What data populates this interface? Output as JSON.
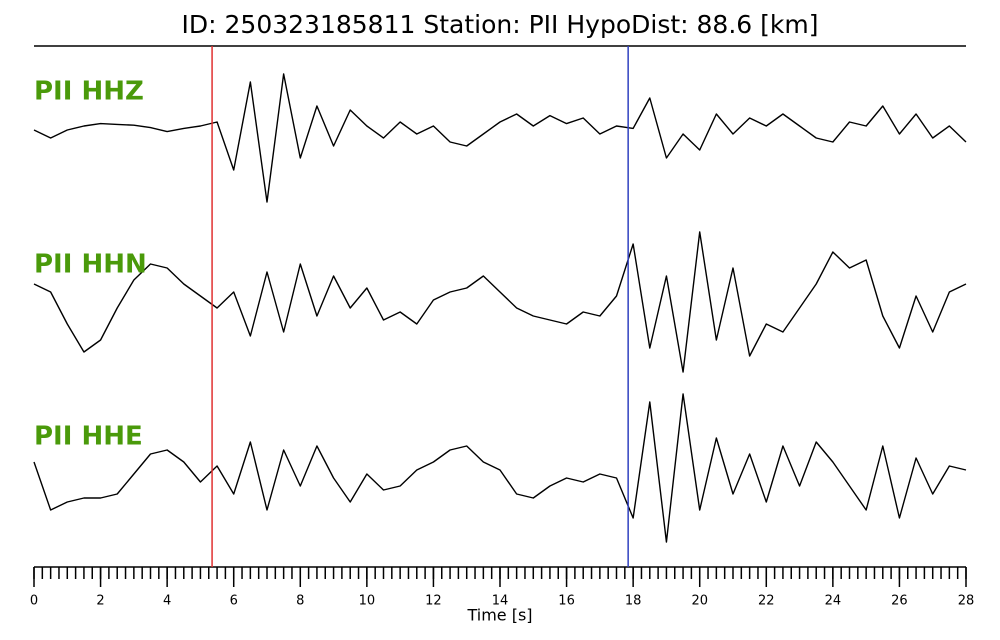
{
  "chart_data": {
    "type": "seismogram",
    "title": "ID: 250323185811   Station: PII   HypoDist:    88.6 [km]",
    "xlabel": "Time [s]",
    "xlim": [
      0,
      28
    ],
    "xticks": [
      0,
      2,
      4,
      6,
      8,
      10,
      12,
      14,
      16,
      18,
      20,
      22,
      24,
      26,
      28
    ],
    "xminor_step": 0.25,
    "ylim": [
      -1,
      1
    ],
    "label_color": "#4a9a0a",
    "x": [
      0,
      0.5,
      1,
      1.5,
      2,
      2.5,
      3,
      3.5,
      4,
      4.5,
      5,
      5.5,
      6,
      6.5,
      7,
      7.5,
      8,
      8.5,
      9,
      9.5,
      10,
      10.5,
      11,
      11.5,
      12,
      12.5,
      13,
      13.5,
      14,
      14.5,
      15,
      15.5,
      16,
      16.5,
      17,
      17.5,
      18,
      18.5,
      19,
      19.5,
      20,
      20.5,
      21,
      21.5,
      22,
      22.5,
      23,
      23.5,
      24,
      24.5,
      25,
      25.5,
      26,
      26.5,
      27,
      27.5,
      28
    ],
    "series": [
      {
        "name": "PII HHZ",
        "color": "#000000",
        "values": [
          0,
          -0.1,
          0,
          0.05,
          0.08,
          0.07,
          0.06,
          0.03,
          -0.02,
          0.02,
          0.05,
          0.1,
          -0.5,
          0.6,
          -0.9,
          0.7,
          -0.35,
          0.3,
          -0.2,
          0.25,
          0.05,
          -0.1,
          0.1,
          -0.05,
          0.05,
          -0.15,
          -0.2,
          -0.05,
          0.1,
          0.2,
          0.05,
          0.18,
          0.08,
          0.15,
          -0.05,
          0.05,
          0.02,
          0.4,
          -0.35,
          -0.05,
          -0.25,
          0.2,
          -0.05,
          0.15,
          0.05,
          0.2,
          0.05,
          -0.1,
          -0.15,
          0.1,
          0.05,
          0.3,
          -0.05,
          0.2,
          -0.1,
          0.05,
          -0.15
        ]
      },
      {
        "name": "PII HHN",
        "color": "#000000",
        "values": [
          0.2,
          0.1,
          -0.3,
          -0.65,
          -0.5,
          -0.1,
          0.25,
          0.45,
          0.4,
          0.2,
          0.05,
          -0.1,
          0.1,
          -0.45,
          0.35,
          -0.4,
          0.45,
          -0.2,
          0.3,
          -0.1,
          0.15,
          -0.25,
          -0.15,
          -0.3,
          0,
          0.1,
          0.15,
          0.3,
          0.1,
          -0.1,
          -0.2,
          -0.25,
          -0.3,
          -0.15,
          -0.2,
          0.05,
          0.7,
          -0.6,
          0.3,
          -0.9,
          0.85,
          -0.5,
          0.4,
          -0.7,
          -0.3,
          -0.4,
          -0.1,
          0.2,
          0.6,
          0.4,
          0.5,
          -0.2,
          -0.6,
          0.05,
          -0.4,
          0.1,
          0.2
        ]
      },
      {
        "name": "PII HHE",
        "color": "#000000",
        "values": [
          0.1,
          -0.5,
          -0.4,
          -0.35,
          -0.35,
          -0.3,
          -0.05,
          0.2,
          0.25,
          0.1,
          -0.15,
          0.05,
          -0.3,
          0.35,
          -0.5,
          0.25,
          -0.2,
          0.3,
          -0.1,
          -0.4,
          -0.05,
          -0.25,
          -0.2,
          0,
          0.1,
          0.25,
          0.3,
          0.1,
          0,
          -0.3,
          -0.35,
          -0.2,
          -0.1,
          -0.15,
          -0.05,
          -0.1,
          -0.6,
          0.85,
          -0.9,
          0.95,
          -0.5,
          0.4,
          -0.3,
          0.2,
          -0.4,
          0.3,
          -0.2,
          0.35,
          0.1,
          -0.2,
          -0.5,
          0.3,
          -0.6,
          0.15,
          -0.3,
          0.05,
          0
        ]
      }
    ],
    "markers": [
      {
        "x": 5.35,
        "color": "#e03030"
      },
      {
        "x": 17.85,
        "color": "#3040c0"
      }
    ]
  }
}
